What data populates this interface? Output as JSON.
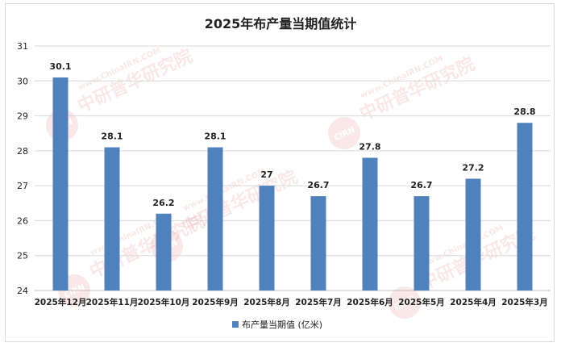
{
  "chart_data": {
    "type": "bar",
    "title": "2025年布产量当期值统计",
    "categories": [
      "2025年12月",
      "2025年11月",
      "2025年10月",
      "2025年9月",
      "2025年8月",
      "2025年7月",
      "2025年6月",
      "2025年5月",
      "2025年4月",
      "2025年3月"
    ],
    "series": [
      {
        "name": "布产量当期值 (亿米)",
        "values": [
          30.1,
          28.1,
          26.2,
          28.1,
          27,
          26.7,
          27.8,
          26.7,
          27.2,
          28.8
        ]
      }
    ],
    "data_labels": [
      "30.1",
      "28.1",
      "26.2",
      "28.1",
      "27",
      "26.7",
      "27.8",
      "26.7",
      "27.2",
      "28.8"
    ],
    "ylim": [
      24,
      31
    ],
    "yticks": [
      "24",
      "25",
      "26",
      "27",
      "28",
      "29",
      "30",
      "31"
    ],
    "grid": true,
    "legend_position": "bottom",
    "colors": {
      "bar": "#4f81bd",
      "grid": "#d9d9d9",
      "watermark_red": "#d9534f"
    }
  },
  "watermark": {
    "text_cn": "中研普华研究院",
    "text_url": "www.ChinaIRN.COM",
    "logo_letters": "CIRN"
  }
}
